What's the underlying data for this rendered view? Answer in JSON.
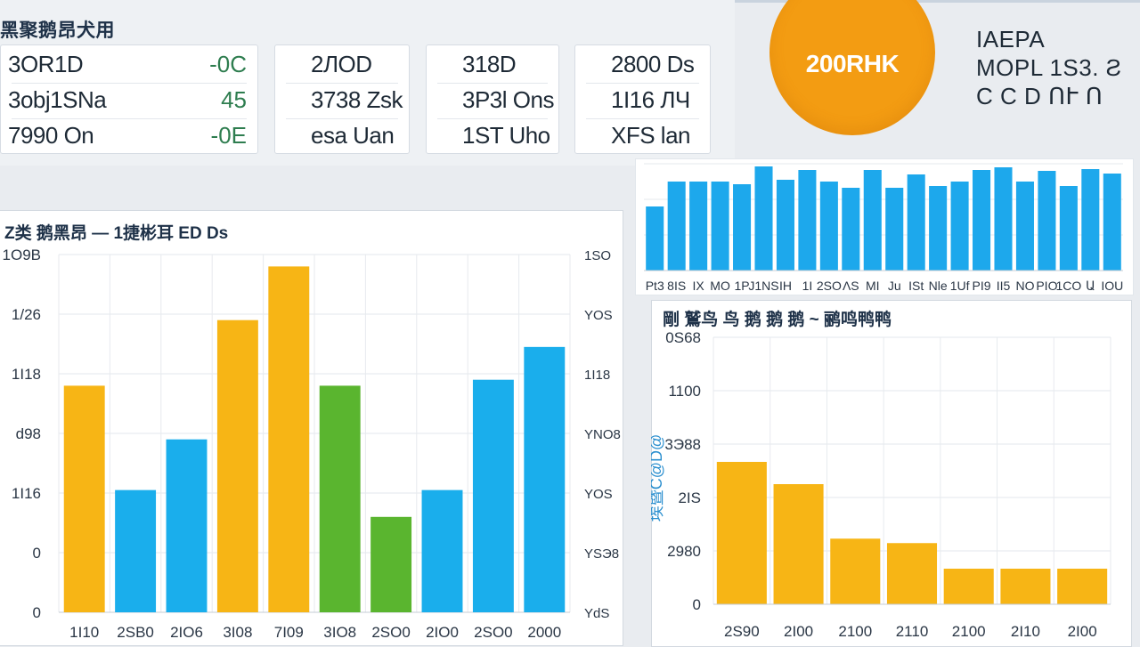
{
  "header": {
    "title": "黑聚鹅昂犬用"
  },
  "stats": [
    {
      "rows": [
        {
          "label": "3OR1D",
          "delta": "-0C"
        },
        {
          "label": "3obj1SNa",
          "delta": "45"
        },
        {
          "label": "7990 On",
          "delta": "-0E"
        }
      ]
    },
    {
      "rows": [
        {
          "label": "2ЛOD",
          "delta": ""
        },
        {
          "label": "3738 Zsk",
          "delta": ""
        },
        {
          "label": "esa Uan",
          "delta": ""
        }
      ]
    },
    {
      "rows": [
        {
          "label": "318D",
          "delta": ""
        },
        {
          "label": "3P3l Ons",
          "delta": ""
        },
        {
          "label": "1ST Uho",
          "delta": ""
        }
      ]
    },
    {
      "rows": [
        {
          "label": "2800 Ds",
          "delta": ""
        },
        {
          "label": "1I16 ЛЧ",
          "delta": ""
        },
        {
          "label": "XFS lan",
          "delta": ""
        }
      ]
    }
  ],
  "kpi": {
    "value": "200RHK",
    "color": "#f39c12"
  },
  "legend_lines": [
    "IAEPA",
    "MOPL 1S3.  Ƨ",
    "C C  D ՈՒ  Ո"
  ],
  "colors": {
    "orange": "#f7b515",
    "blue": "#1aaeec",
    "green": "#5ab52f",
    "bright_blue": "#1da8ec"
  },
  "chart_data": [
    {
      "type": "bar",
      "title": "Z类 鹅黑昂  —  1捷彬耳 ED Ds",
      "xlabel": "",
      "ylabel": "",
      "y_ticks_left": [
        "1O9B",
        "1/26",
        "1I18",
        "d98",
        "1I16",
        "0",
        "0"
      ],
      "y_ticks_right": [
        "1SO",
        "ΥOS",
        "1I18",
        "ΥNO8",
        "ΥOS",
        "ΥSЭ8",
        "ΥdS"
      ],
      "x_ticks": [
        "1I10",
        "2SB0",
        "2IO6",
        "3I08",
        "7I09",
        "3IO8",
        "2SO0",
        "2IO0",
        "2SO0",
        "2000"
      ],
      "ylim": [
        0,
        1200
      ],
      "bars": [
        {
          "value": 760,
          "color": "orange"
        },
        {
          "value": 410,
          "color": "blue"
        },
        {
          "value": 580,
          "color": "blue"
        },
        {
          "value": 980,
          "color": "orange"
        },
        {
          "value": 1160,
          "color": "orange"
        },
        {
          "value": 760,
          "color": "green"
        },
        {
          "value": 320,
          "color": "green"
        },
        {
          "value": 410,
          "color": "blue"
        },
        {
          "value": 780,
          "color": "blue"
        },
        {
          "value": 890,
          "color": "blue"
        }
      ]
    },
    {
      "type": "bar",
      "title": "",
      "x_ticks": [
        "Pt3",
        "8IS",
        "IX",
        "MO",
        "1P",
        "J1NS",
        "IH",
        "1I",
        "2SO",
        "ΛS",
        "MI",
        "Ju",
        "ISt",
        "Nle",
        "1Uf",
        "PI9",
        "II5",
        "NO",
        "PIO",
        "1CO",
        "Ա",
        "IOU"
      ],
      "ylim": [
        0,
        120
      ],
      "values": [
        72,
        100,
        100,
        100,
        97,
        117,
        102,
        113,
        100,
        93,
        113,
        93,
        108,
        95,
        100,
        113,
        116,
        100,
        112,
        95,
        114,
        109
      ]
    },
    {
      "type": "bar",
      "title": "剛 鷲鸟 鸟 鹅 鹅 鹅   ~ 鹂鸣鸭鸭",
      "ylabel": "埃暨C@D@",
      "y_ticks": [
        "0S68",
        "1100",
        "3Э88",
        "2IS",
        "2980",
        "0"
      ],
      "x_ticks": [
        "2S90",
        "2I00",
        "2100",
        "2110",
        "2100",
        "2I10",
        "2I00"
      ],
      "ylim": [
        0,
        1200
      ],
      "values": [
        640,
        540,
        295,
        275,
        160,
        160,
        160
      ]
    }
  ]
}
